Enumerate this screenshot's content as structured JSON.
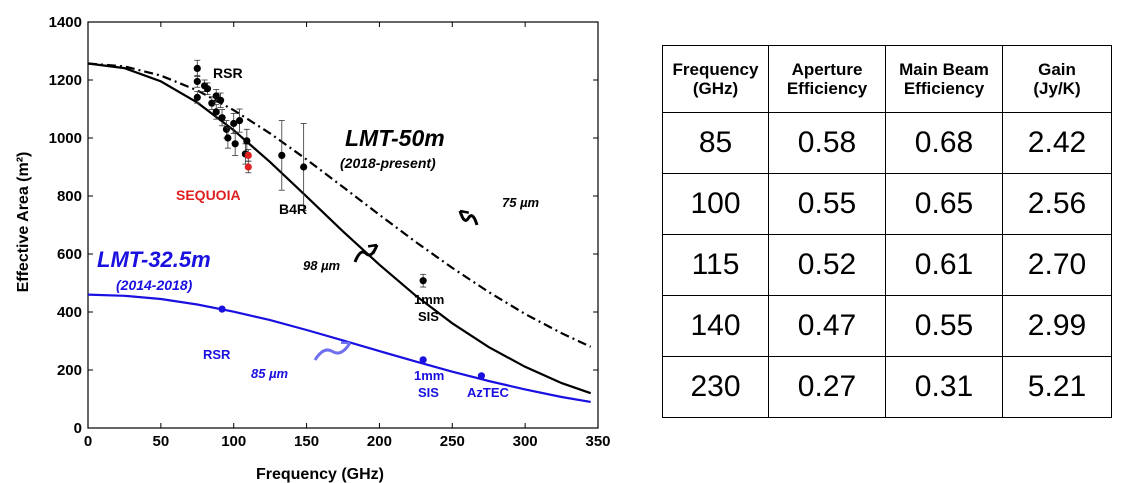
{
  "chart_data": {
    "type": "line",
    "xlabel": "Frequency (GHz)",
    "ylabel": "Effective Area (m²)",
    "xlim": [
      0,
      350
    ],
    "ylim": [
      0,
      1400
    ],
    "xticks": [
      "0",
      "50",
      "100",
      "150",
      "200",
      "250",
      "300",
      "350"
    ],
    "yticks": [
      "0",
      "200",
      "400",
      "600",
      "800",
      "1000",
      "1200",
      "1400"
    ],
    "grid": false,
    "series": [
      {
        "name": "LMT-50m",
        "subtitle": "(2018-present)",
        "style": "dash-dot",
        "color": "#000000",
        "annotation": "75 µm",
        "x": [
          0,
          25,
          50,
          75,
          100,
          125,
          150,
          175,
          200,
          225,
          250,
          275,
          300,
          325,
          345
        ],
        "y": [
          1257,
          1247,
          1215,
          1164,
          1096,
          1016,
          926,
          831,
          735,
          641,
          552,
          469,
          393,
          327,
          280
        ]
      },
      {
        "name": "",
        "style": "solid",
        "color": "#000000",
        "annotation": "98 µm",
        "x": [
          0,
          25,
          50,
          75,
          100,
          125,
          150,
          175,
          200,
          225,
          250,
          275,
          300,
          325,
          345
        ],
        "y": [
          1257,
          1241,
          1195,
          1122,
          1027,
          917,
          798,
          678,
          563,
          456,
          361,
          279,
          211,
          155,
          120
        ]
      },
      {
        "name": "LMT-32.5m",
        "subtitle": "(2014-2018)",
        "style": "solid",
        "color": "#1a10e0",
        "annotation": "85 µm",
        "x": [
          0,
          25,
          50,
          75,
          100,
          125,
          150,
          175,
          200,
          225,
          250,
          275,
          300,
          325,
          345
        ],
        "y": [
          460,
          456,
          445,
          426,
          401,
          372,
          338,
          302,
          265,
          229,
          194,
          162,
          133,
          107,
          90
        ]
      }
    ],
    "points": [
      {
        "group": "RSR",
        "color": "#000000",
        "x": 75,
        "y": 1240,
        "err": 28
      },
      {
        "group": "RSR",
        "color": "#000000",
        "x": 75,
        "y": 1195,
        "err": 20
      },
      {
        "group": "RSR",
        "color": "#000000",
        "x": 75,
        "y": 1140,
        "err": 20
      },
      {
        "group": "RSR",
        "color": "#000000",
        "x": 80,
        "y": 1180,
        "err": 20
      },
      {
        "group": "RSR",
        "color": "#000000",
        "x": 82,
        "y": 1170,
        "err": 20
      },
      {
        "group": "RSR",
        "color": "#000000",
        "x": 85,
        "y": 1120,
        "err": 22
      },
      {
        "group": "RSR",
        "color": "#000000",
        "x": 88,
        "y": 1145,
        "err": 22
      },
      {
        "group": "RSR",
        "color": "#000000",
        "x": 88,
        "y": 1090,
        "err": 25
      },
      {
        "group": "RSR",
        "color": "#000000",
        "x": 91,
        "y": 1130,
        "err": 25
      },
      {
        "group": "RSR",
        "color": "#000000",
        "x": 92,
        "y": 1070,
        "err": 28
      },
      {
        "group": "RSR",
        "color": "#000000",
        "x": 95,
        "y": 1030,
        "err": 30
      },
      {
        "group": "RSR",
        "color": "#000000",
        "x": 96,
        "y": 1000,
        "err": 35
      },
      {
        "group": "RSR",
        "color": "#000000",
        "x": 100,
        "y": 1050,
        "err": 35
      },
      {
        "group": "RSR",
        "color": "#000000",
        "x": 101,
        "y": 980,
        "err": 40
      },
      {
        "group": "RSR",
        "color": "#000000",
        "x": 104,
        "y": 1060,
        "err": 40
      },
      {
        "group": "RSR",
        "color": "#000000",
        "x": 108,
        "y": 945,
        "err": 35
      },
      {
        "group": "RSR",
        "color": "#000000",
        "x": 109,
        "y": 990,
        "err": 40
      },
      {
        "group": "SEQUOIA",
        "color": "#e02020",
        "x": 110,
        "y": 940,
        "err": 20
      },
      {
        "group": "SEQUOIA",
        "color": "#e02020",
        "x": 110,
        "y": 900,
        "err": 20
      },
      {
        "group": "B4R",
        "color": "#000000",
        "x": 133,
        "y": 940,
        "err": 120
      },
      {
        "group": "B4R",
        "color": "#000000",
        "x": 148,
        "y": 900,
        "err": 150
      },
      {
        "group": "1mm SIS",
        "color": "#000000",
        "x": 230,
        "y": 508,
        "err": 22
      },
      {
        "group": "RSR",
        "color": "#1a10e0",
        "x": 92,
        "y": 410,
        "err": 0
      },
      {
        "group": "1mm SIS",
        "color": "#1a10e0",
        "x": 230,
        "y": 235,
        "err": 0
      },
      {
        "group": "AzTEC",
        "color": "#1a10e0",
        "x": 270,
        "y": 180,
        "err": 0
      }
    ],
    "labels": {
      "rsr_top": "RSR",
      "sequoia": "SEQUOIA",
      "b4r": "B4R",
      "sis_top_1": "1mm",
      "sis_top_2": "SIS",
      "rsr_bottom": "RSR",
      "sis_bottom_1": "1mm",
      "sis_bottom_2": "SIS",
      "aztec": "AzTEC"
    }
  },
  "table": {
    "headers": [
      [
        "Frequency",
        "(GHz)"
      ],
      [
        "Aperture",
        "Efficiency"
      ],
      [
        "Main Beam",
        "Efficiency"
      ],
      [
        "Gain",
        "(Jy/K)"
      ]
    ],
    "rows": [
      [
        "85",
        "0.58",
        "0.68",
        "2.42"
      ],
      [
        "100",
        "0.55",
        "0.65",
        "2.56"
      ],
      [
        "115",
        "0.52",
        "0.61",
        "2.70"
      ],
      [
        "140",
        "0.47",
        "0.55",
        "2.99"
      ],
      [
        "230",
        "0.27",
        "0.31",
        "5.21"
      ]
    ]
  },
  "colors": {
    "lmt50": "#000000",
    "lmt325": "#1a10e0",
    "sequoia": "#e02020",
    "arrow_85": "#6f6ff0"
  }
}
